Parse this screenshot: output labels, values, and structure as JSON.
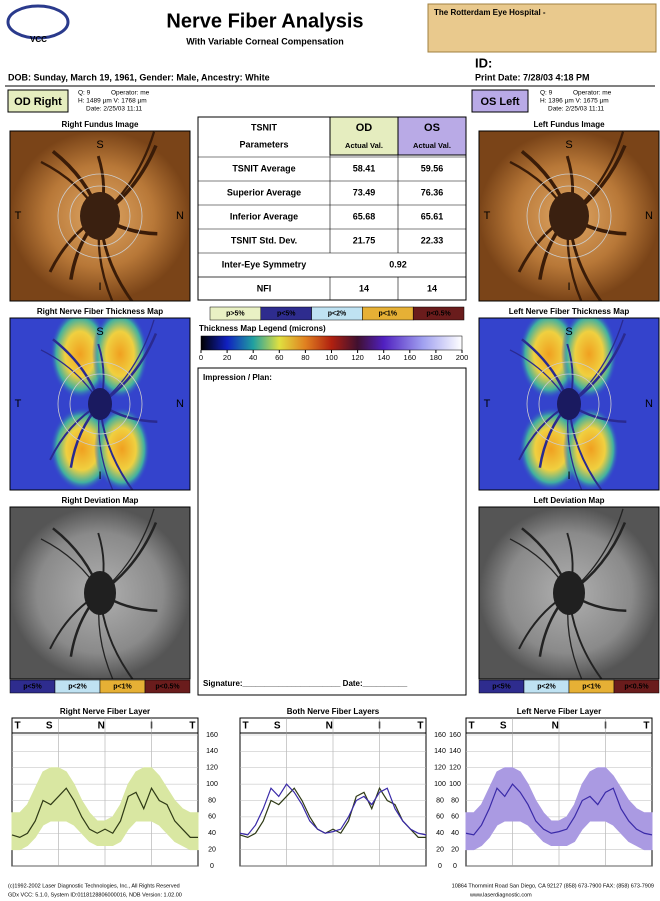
{
  "header": {
    "logo": "VCC",
    "title": "Nerve Fiber Analysis",
    "subtitle": "With Variable Corneal Compensation",
    "hospital": "The Rotterdam Eye Hospital -",
    "id_label": "ID:",
    "dob": "DOB: Sunday, March 19, 1961, Gender: Male, Ancestry: White",
    "print_date": "Print Date: 7/28/03 4:18 PM"
  },
  "od": {
    "label": "OD Right",
    "q": "Q: 9",
    "operator": "Operator: me",
    "hv": "H: 1489 µm V: 1768 µm",
    "date": "Date: 2/25/03 11:11"
  },
  "os": {
    "label": "OS Left",
    "q": "Q: 9",
    "operator": "Operator: me",
    "hv": "H: 1396 µm V: 1675 µm",
    "date": "Date: 2/25/03 11:11"
  },
  "panels": {
    "right_fundus": "Right Fundus Image",
    "left_fundus": "Left Fundus Image",
    "right_thickness": "Right Nerve Fiber Thickness Map",
    "left_thickness": "Left Nerve Fiber Thickness Map",
    "right_deviation": "Right Deviation Map",
    "left_deviation": "Left Deviation Map",
    "letters": [
      "S",
      "T",
      "N",
      "I"
    ]
  },
  "table": {
    "header": [
      "TSNIT",
      "Parameters",
      "OD",
      "Actual Val.",
      "OS",
      "Actual Val."
    ],
    "rows": [
      [
        "TSNIT Average",
        "58.41",
        "59.56"
      ],
      [
        "Superior Average",
        "73.49",
        "76.36"
      ],
      [
        "Inferior Average",
        "65.68",
        "65.61"
      ],
      [
        "TSNIT Std. Dev.",
        "21.75",
        "22.33"
      ],
      [
        "NFI",
        "14",
        "14"
      ]
    ],
    "symmetry": [
      "Inter-Eye Symmetry",
      "0.92"
    ]
  },
  "significance": {
    "labels": [
      "p>5%",
      "p<5%",
      "p<2%",
      "p<1%",
      "p<0.5%"
    ],
    "colors": [
      "#e9f1c4",
      "#2e2c8e",
      "#bfe2f2",
      "#e6b035",
      "#6a1c1c"
    ]
  },
  "thickness_legend": {
    "title": "Thickness Map Legend (microns)",
    "ticks": [
      0,
      20,
      40,
      60,
      80,
      100,
      120,
      140,
      160,
      180,
      200
    ]
  },
  "impression": {
    "title": "Impression / Plan:",
    "signature": "Signature:______________________  Date:__________"
  },
  "graphs": {
    "titles": [
      "Right Nerve Fiber Layer",
      "Both Nerve Fiber Layers",
      "Left Nerve Fiber Layer"
    ],
    "letters": [
      "T",
      "S",
      "N",
      "I",
      "T"
    ],
    "ylim": [
      0,
      160
    ],
    "yticks": [
      0,
      20,
      40,
      60,
      80,
      100,
      120,
      140,
      160
    ],
    "band_lower": [
      20,
      20,
      25,
      35,
      50,
      55,
      55,
      55,
      50,
      40,
      30,
      25,
      25,
      25,
      30,
      45,
      55,
      55,
      55,
      50,
      40,
      30,
      25,
      20,
      20
    ],
    "band_upper": [
      65,
      65,
      75,
      95,
      115,
      120,
      120,
      115,
      100,
      80,
      65,
      55,
      55,
      60,
      75,
      100,
      115,
      120,
      120,
      110,
      95,
      80,
      70,
      65,
      65
    ],
    "band_colors": [
      "#d9e7a2",
      "#aa9ae2"
    ],
    "series": [
      {
        "name": "OD",
        "color": "#2f3a16",
        "values": [
          38,
          35,
          40,
          55,
          80,
          75,
          85,
          95,
          80,
          60,
          45,
          40,
          45,
          40,
          55,
          85,
          90,
          70,
          95,
          80,
          75,
          55,
          45,
          35,
          35
        ]
      },
      {
        "name": "OS",
        "color": "#3a2aa8",
        "values": [
          40,
          38,
          50,
          70,
          95,
          85,
          100,
          90,
          75,
          55,
          45,
          40,
          42,
          45,
          60,
          80,
          85,
          75,
          90,
          95,
          70,
          55,
          45,
          40,
          38
        ]
      }
    ]
  },
  "footer": {
    "copyright": "(c)1992-2002 Laser Diagnostic Technologies, Inc., All Rights Reserved",
    "version": "GDx VCC: 5.1.0, System ID:0118128806000016, NDB Version: 1.02.00",
    "address": "10864 Thornmint Road San Diego, CA 92127 (858) 673-7900 FAX: (858) 673-7909",
    "web": "www.laserdiagnostic.com"
  }
}
